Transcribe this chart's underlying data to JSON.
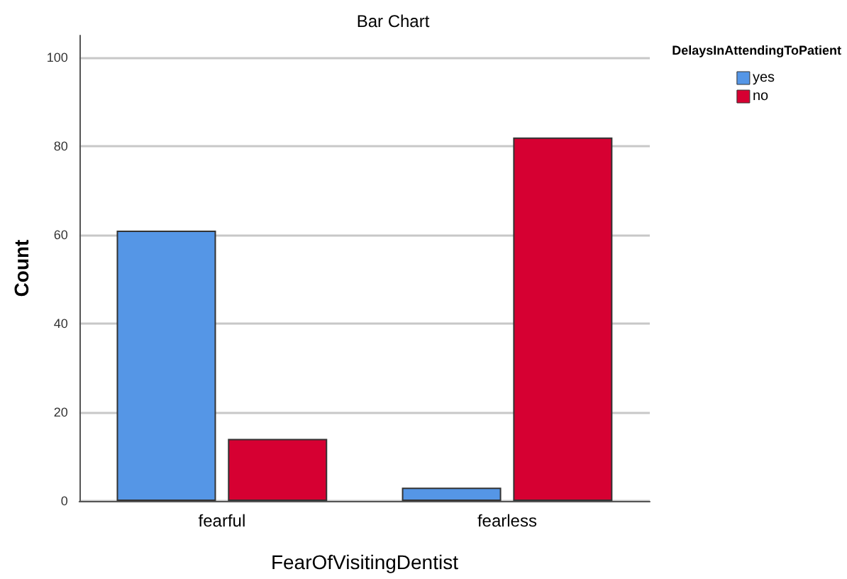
{
  "chart_data": {
    "type": "bar",
    "title": "Bar Chart",
    "xlabel": "FearOfVisitingDentist",
    "ylabel": "Count",
    "legend_title": "DelaysInAttendingToPatient",
    "categories": [
      "fearful",
      "fearless"
    ],
    "series": [
      {
        "name": "yes",
        "color": "#5596e6",
        "values": [
          61,
          3
        ]
      },
      {
        "name": "no",
        "color": "#d60032",
        "values": [
          14,
          82
        ]
      }
    ],
    "ylim": [
      0,
      105
    ],
    "yticks": [
      0,
      20,
      40,
      60,
      80,
      100
    ],
    "grid": "y",
    "legend": "top right"
  }
}
